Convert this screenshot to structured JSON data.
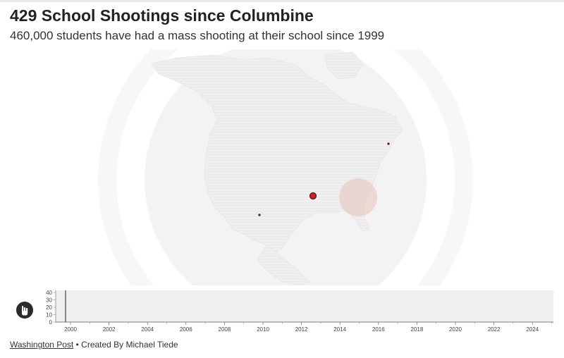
{
  "header": {
    "title": "429 School Shootings since Columbine",
    "subtitle": "460,000 students have had a mass shooting at their school since 1999"
  },
  "map": {
    "projection": "orthographic",
    "background_color": "#f3f3f3",
    "marker_color": "#c0282d",
    "highlight_color": "#e8c3b8",
    "markers": [
      {
        "label": "Littleton, CO area marker",
        "size": "large"
      },
      {
        "label": "Southwest marker",
        "size": "small"
      },
      {
        "label": "Northeast marker",
        "size": "small"
      }
    ]
  },
  "timeline": {
    "y_ticks": [
      "40",
      "30",
      "20",
      "10",
      "0"
    ],
    "x_ticks": [
      "2000",
      "2002",
      "2004",
      "2006",
      "2008",
      "2010",
      "2012",
      "2014",
      "2016",
      "2018",
      "2020",
      "2022",
      "2024"
    ],
    "play_icon": "hand-pointer-icon",
    "current_year_marker": "1999"
  },
  "footer": {
    "source_link": "Washington Post",
    "credit": " • Created By Michael Tiede"
  }
}
